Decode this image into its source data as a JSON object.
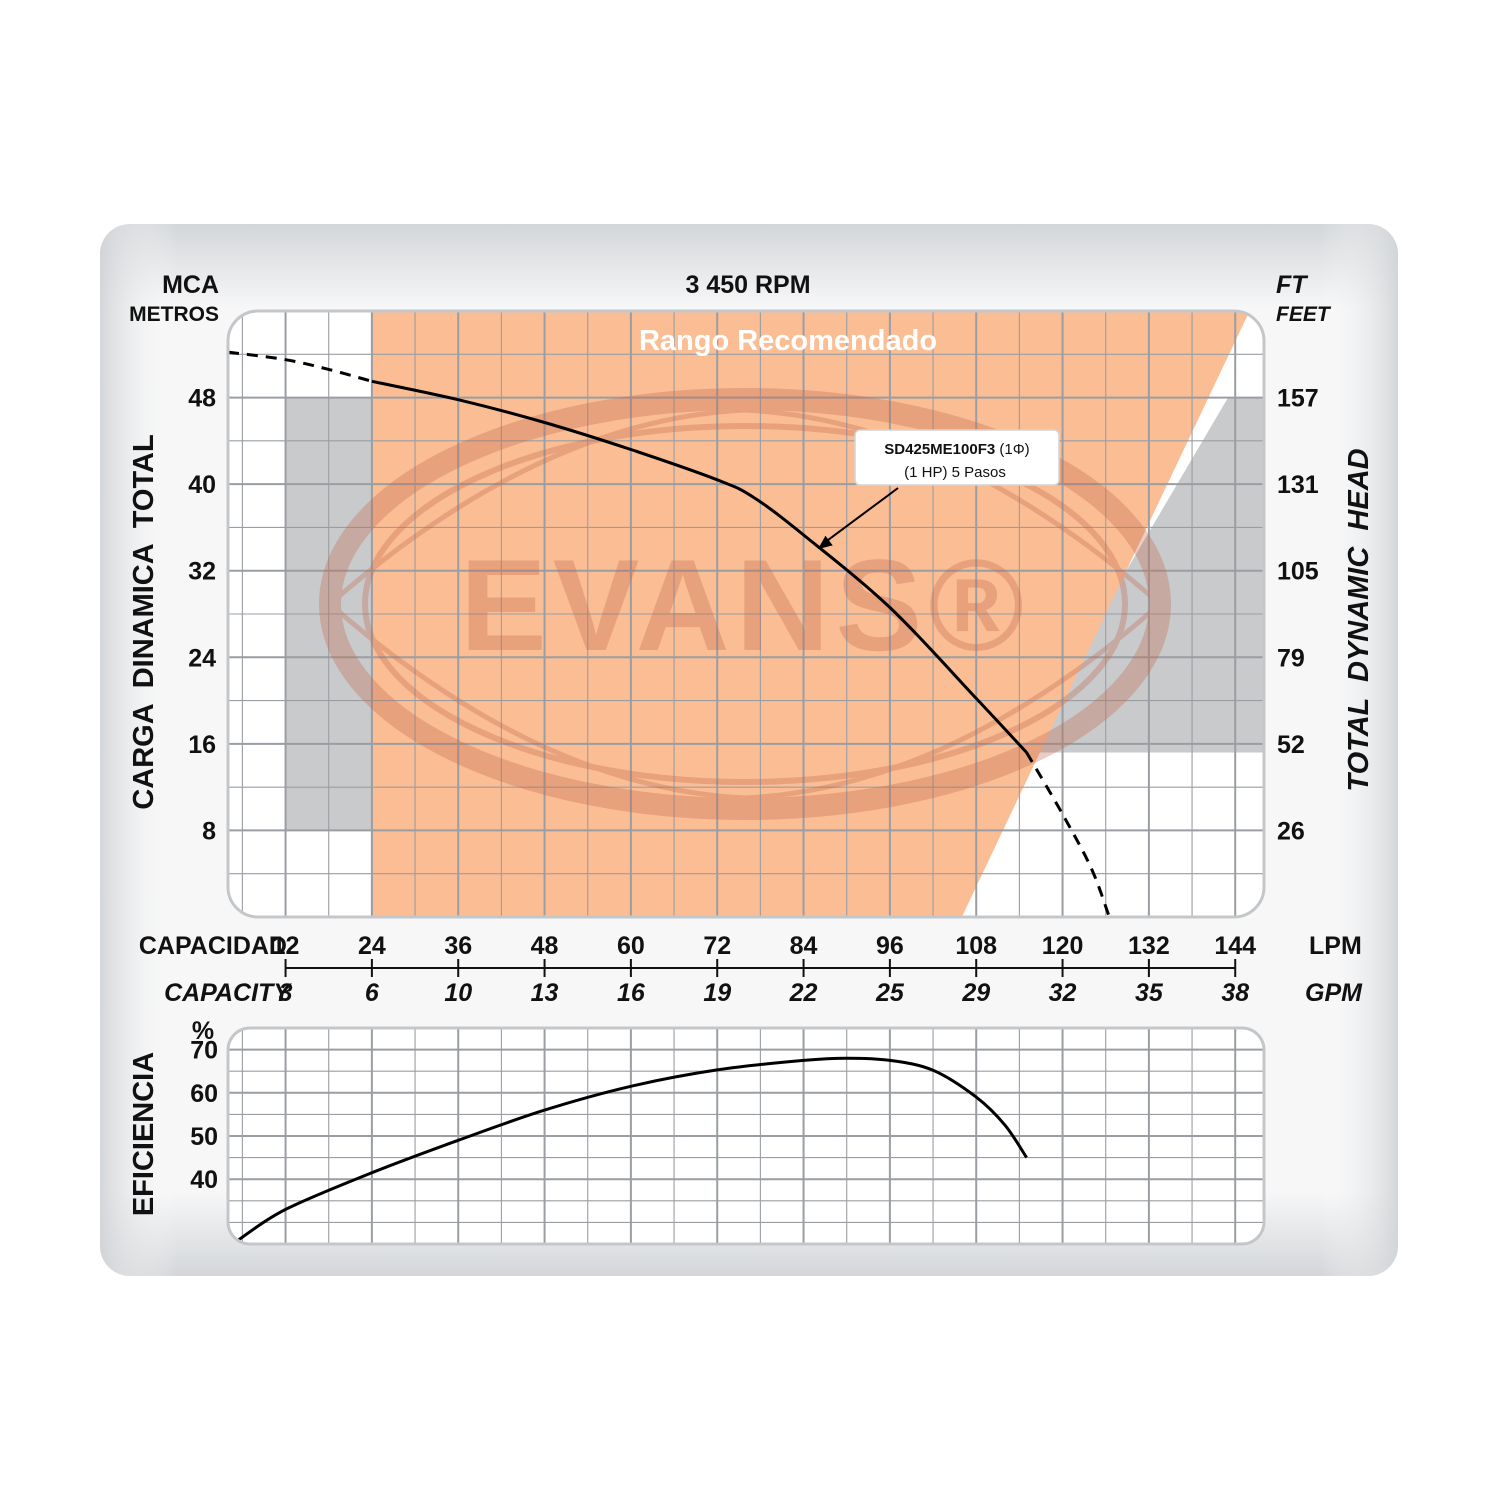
{
  "chart_data": [
    {
      "type": "line",
      "title": "3 450 RPM",
      "left_unit": "MCA",
      "left_unit_sub": "METROS",
      "right_unit": "FT",
      "right_unit_sub": "FEET",
      "ylabel": "CARGA  DINAMICA  TOTAL",
      "ylabel_right": "TOTAL  DYNAMIC  HEAD",
      "xlabel": "CAPACIDAD",
      "xlabel_secondary": "CAPACITY",
      "x_unit": "LPM",
      "x_unit_secondary": "GPM",
      "xlim": [
        4,
        148
      ],
      "ylim": [
        0,
        56
      ],
      "grid": true,
      "x_ticks": [
        12,
        24,
        36,
        48,
        60,
        72,
        84,
        96,
        108,
        120,
        132,
        144
      ],
      "x_tick_labels": [
        "12",
        "24",
        "36",
        "48",
        "60",
        "72",
        "84",
        "96",
        "108",
        "120",
        "132",
        "144"
      ],
      "x_ticks_secondary_labels": [
        "3",
        "6",
        "10",
        "13",
        "16",
        "19",
        "22",
        "25",
        "29",
        "32",
        "35",
        "38"
      ],
      "y_ticks": [
        8,
        16,
        24,
        32,
        40,
        48
      ],
      "y_tick_labels": [
        "8",
        "16",
        "24",
        "32",
        "40",
        "48"
      ],
      "y_ticks_right_labels": [
        "26",
        "52",
        "79",
        "105",
        "131",
        "157"
      ],
      "recommended_range_label": "Rango Recomendado",
      "recommended_range": {
        "x_start": 24,
        "bottom_x_end": 106,
        "top_x_end": 146,
        "shadow_x_start": 12,
        "shadow_y_bottom": 8,
        "shadow_y_top": 48,
        "shadow_slant_bottom_x": 114,
        "shadow_slant_top_x": 143
      },
      "annotation": {
        "model": "SD425ME100F3",
        "phase": "(1Φ)",
        "line2": "(1 HP)  5 Pasos",
        "target_x": 86,
        "target_y": 34
      },
      "series": [
        {
          "name": "SD425ME100F3 (1Φ) (1 HP) 5 Pasos",
          "solid": [
            {
              "x": 24,
              "y": 49.5
            },
            {
              "x": 36,
              "y": 47.8
            },
            {
              "x": 48,
              "y": 45.7
            },
            {
              "x": 60,
              "y": 43.2
            },
            {
              "x": 72,
              "y": 40.4
            },
            {
              "x": 77,
              "y": 38.8
            },
            {
              "x": 84,
              "y": 35.3
            },
            {
              "x": 96,
              "y": 28.6
            },
            {
              "x": 108,
              "y": 20.2
            },
            {
              "x": 115,
              "y": 15.2
            }
          ],
          "dashed_start": [
            {
              "x": 4,
              "y": 52.2
            },
            {
              "x": 12,
              "y": 51.5
            },
            {
              "x": 18,
              "y": 50.6
            },
            {
              "x": 24,
              "y": 49.5
            }
          ],
          "dashed_end": [
            {
              "x": 115,
              "y": 15.2
            },
            {
              "x": 120,
              "y": 9.5
            },
            {
              "x": 124,
              "y": 4.5
            },
            {
              "x": 126.5,
              "y": 0
            }
          ]
        }
      ],
      "watermark": "EVANS®"
    },
    {
      "type": "line",
      "ylabel": "EFICIENCIA",
      "y_unit": "%",
      "xlim": [
        4,
        148
      ],
      "ylim": [
        25,
        75
      ],
      "grid": true,
      "y_ticks": [
        40,
        50,
        60,
        70
      ],
      "y_tick_labels": [
        "40",
        "50",
        "60",
        "70"
      ],
      "series": [
        {
          "name": "Eficiencia",
          "points": [
            {
              "x": 5.5,
              "y": 26
            },
            {
              "x": 12,
              "y": 33
            },
            {
              "x": 24,
              "y": 41.5
            },
            {
              "x": 36,
              "y": 49
            },
            {
              "x": 48,
              "y": 56
            },
            {
              "x": 60,
              "y": 61.5
            },
            {
              "x": 72,
              "y": 65.3
            },
            {
              "x": 84,
              "y": 67.5
            },
            {
              "x": 90,
              "y": 68
            },
            {
              "x": 96,
              "y": 67.5
            },
            {
              "x": 102,
              "y": 65.2
            },
            {
              "x": 108,
              "y": 59
            },
            {
              "x": 112,
              "y": 52.5
            },
            {
              "x": 115,
              "y": 45
            }
          ]
        }
      ]
    }
  ],
  "colors": {
    "panel_border": "#cfd2d5",
    "panel_fill": "#ffffff",
    "grid": "#9a9ea2",
    "range_fill": "#fbbd94",
    "shadow_fill": "#c9cacc",
    "curve": "#000000",
    "watermark": "#c0674a",
    "range_label": "#ffffff"
  }
}
